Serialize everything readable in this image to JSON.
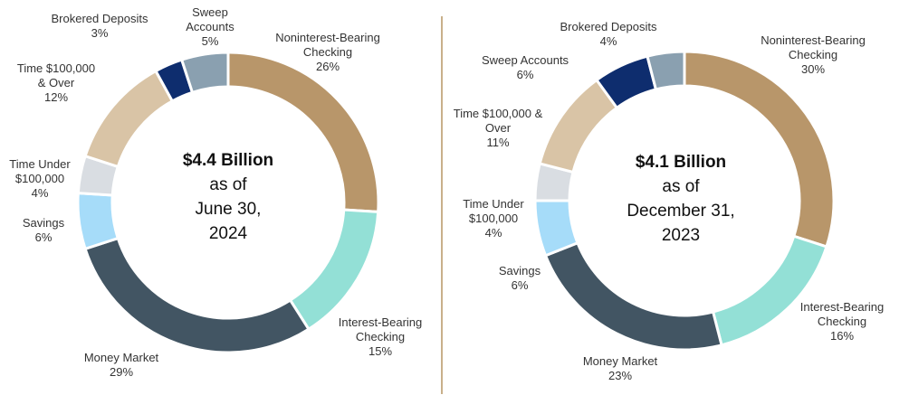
{
  "chart_data": [
    {
      "type": "pie",
      "center_lines": [
        "$4.4 Billion",
        "as of",
        "June 30,",
        "2024"
      ],
      "slices": [
        {
          "label_lines": [
            "Noninterest-Bearing",
            "Checking"
          ],
          "value": 26,
          "pct": "26%",
          "color": "#b8966a"
        },
        {
          "label_lines": [
            "Interest-Bearing",
            "Checking"
          ],
          "value": 15,
          "pct": "15%",
          "color": "#93e0d6"
        },
        {
          "label_lines": [
            "Money Market"
          ],
          "value": 29,
          "pct": "29%",
          "color": "#425563"
        },
        {
          "label_lines": [
            "Savings"
          ],
          "value": 6,
          "pct": "6%",
          "color": "#a6dcf9"
        },
        {
          "label_lines": [
            "Time Under",
            "$100,000"
          ],
          "value": 4,
          "pct": "4%",
          "color": "#d9dde2"
        },
        {
          "label_lines": [
            "Time $100,000",
            "& Over"
          ],
          "value": 12,
          "pct": "12%",
          "color": "#d9c4a6"
        },
        {
          "label_lines": [
            "Brokered Deposits"
          ],
          "value": 3,
          "pct": "3%",
          "color": "#0e2d6e"
        },
        {
          "label_lines": [
            "Sweep",
            "Accounts"
          ],
          "value": 5,
          "pct": "5%",
          "color": "#8aa0b0"
        }
      ]
    },
    {
      "type": "pie",
      "center_lines": [
        "$4.1 Billion",
        "as of",
        "December 31,",
        "2023"
      ],
      "slices": [
        {
          "label_lines": [
            "Noninterest-Bearing",
            "Checking"
          ],
          "value": 30,
          "pct": "30%",
          "color": "#b8966a"
        },
        {
          "label_lines": [
            "Interest-Bearing",
            "Checking"
          ],
          "value": 16,
          "pct": "16%",
          "color": "#93e0d6"
        },
        {
          "label_lines": [
            "Money Market"
          ],
          "value": 23,
          "pct": "23%",
          "color": "#425563"
        },
        {
          "label_lines": [
            "Savings"
          ],
          "value": 6,
          "pct": "6%",
          "color": "#a6dcf9"
        },
        {
          "label_lines": [
            "Time Under",
            "$100,000"
          ],
          "value": 4,
          "pct": "4%",
          "color": "#d9dde2"
        },
        {
          "label_lines": [
            "Time $100,000 &",
            "Over"
          ],
          "value": 11,
          "pct": "11%",
          "color": "#d9c4a6"
        },
        {
          "label_lines": [
            "Sweep Accounts"
          ],
          "value": 6,
          "pct": "6%",
          "color": "#0e2d6e"
        },
        {
          "label_lines": [
            "Brokered Deposits"
          ],
          "value": 4,
          "pct": "4%",
          "color": "#8aa0b0"
        }
      ]
    }
  ]
}
